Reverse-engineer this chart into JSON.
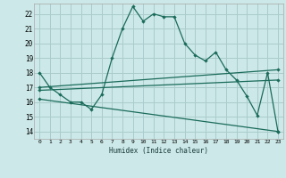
{
  "xlabel": "Humidex (Indice chaleur)",
  "background_color": "#cce8e8",
  "grid_color": "#aacccc",
  "line_color": "#1a6b5a",
  "x_ticks": [
    0,
    1,
    2,
    3,
    4,
    5,
    6,
    7,
    8,
    9,
    10,
    11,
    12,
    13,
    14,
    15,
    16,
    17,
    18,
    19,
    20,
    21,
    22,
    23
  ],
  "y_ticks": [
    14,
    15,
    16,
    17,
    18,
    19,
    20,
    21,
    22
  ],
  "ylim": [
    13.5,
    22.7
  ],
  "xlim": [
    -0.5,
    23.5
  ],
  "series": [
    {
      "x": [
        0,
        1,
        2,
        3,
        4,
        5,
        6,
        7,
        8,
        9,
        10,
        11,
        12,
        13,
        14,
        15,
        16,
        17,
        18,
        19,
        20,
        21,
        22,
        23
      ],
      "y": [
        18.0,
        17.0,
        16.5,
        16.0,
        16.0,
        15.5,
        16.5,
        19.0,
        21.0,
        22.5,
        21.5,
        22.0,
        21.8,
        21.8,
        20.0,
        19.2,
        18.8,
        19.4,
        18.2,
        17.5,
        16.4,
        15.1,
        18.0,
        14.0
      ]
    },
    {
      "x": [
        0,
        23
      ],
      "y": [
        17.0,
        18.2
      ]
    },
    {
      "x": [
        0,
        23
      ],
      "y": [
        16.8,
        17.5
      ]
    },
    {
      "x": [
        0,
        23
      ],
      "y": [
        16.2,
        14.0
      ]
    }
  ]
}
